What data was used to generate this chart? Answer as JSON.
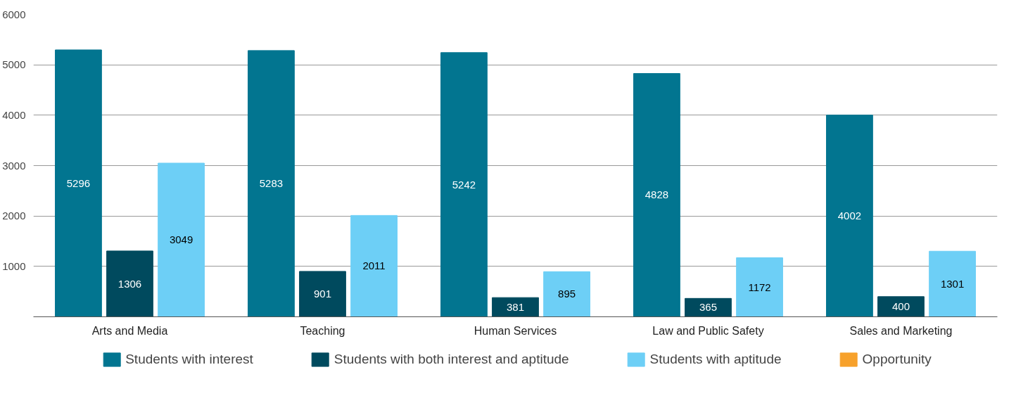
{
  "chart_data": {
    "type": "bar",
    "categories": [
      "Arts and Media",
      "Teaching",
      "Human Services",
      "Law and Public Safety",
      "Sales and Marketing"
    ],
    "series": [
      {
        "name": "Students with interest",
        "color": "#027590",
        "values": [
          5296,
          5283,
          5242,
          4828,
          4002
        ]
      },
      {
        "name": "Students with both interest and aptitude",
        "color": "#004a5e",
        "values": [
          1306,
          901,
          381,
          365,
          400
        ]
      },
      {
        "name": "Students with aptitude",
        "color": "#6dcff6",
        "values": [
          3049,
          2011,
          895,
          1172,
          1301
        ]
      },
      {
        "name": "Opportunity",
        "color": "#f7a12b",
        "values": [
          null,
          null,
          null,
          null,
          null
        ]
      }
    ],
    "ylim": [
      0,
      6000
    ],
    "yticks": [
      1000,
      2000,
      3000,
      4000,
      5000,
      6000
    ],
    "grid": "y",
    "legend": "bottom",
    "data_labels": true
  }
}
